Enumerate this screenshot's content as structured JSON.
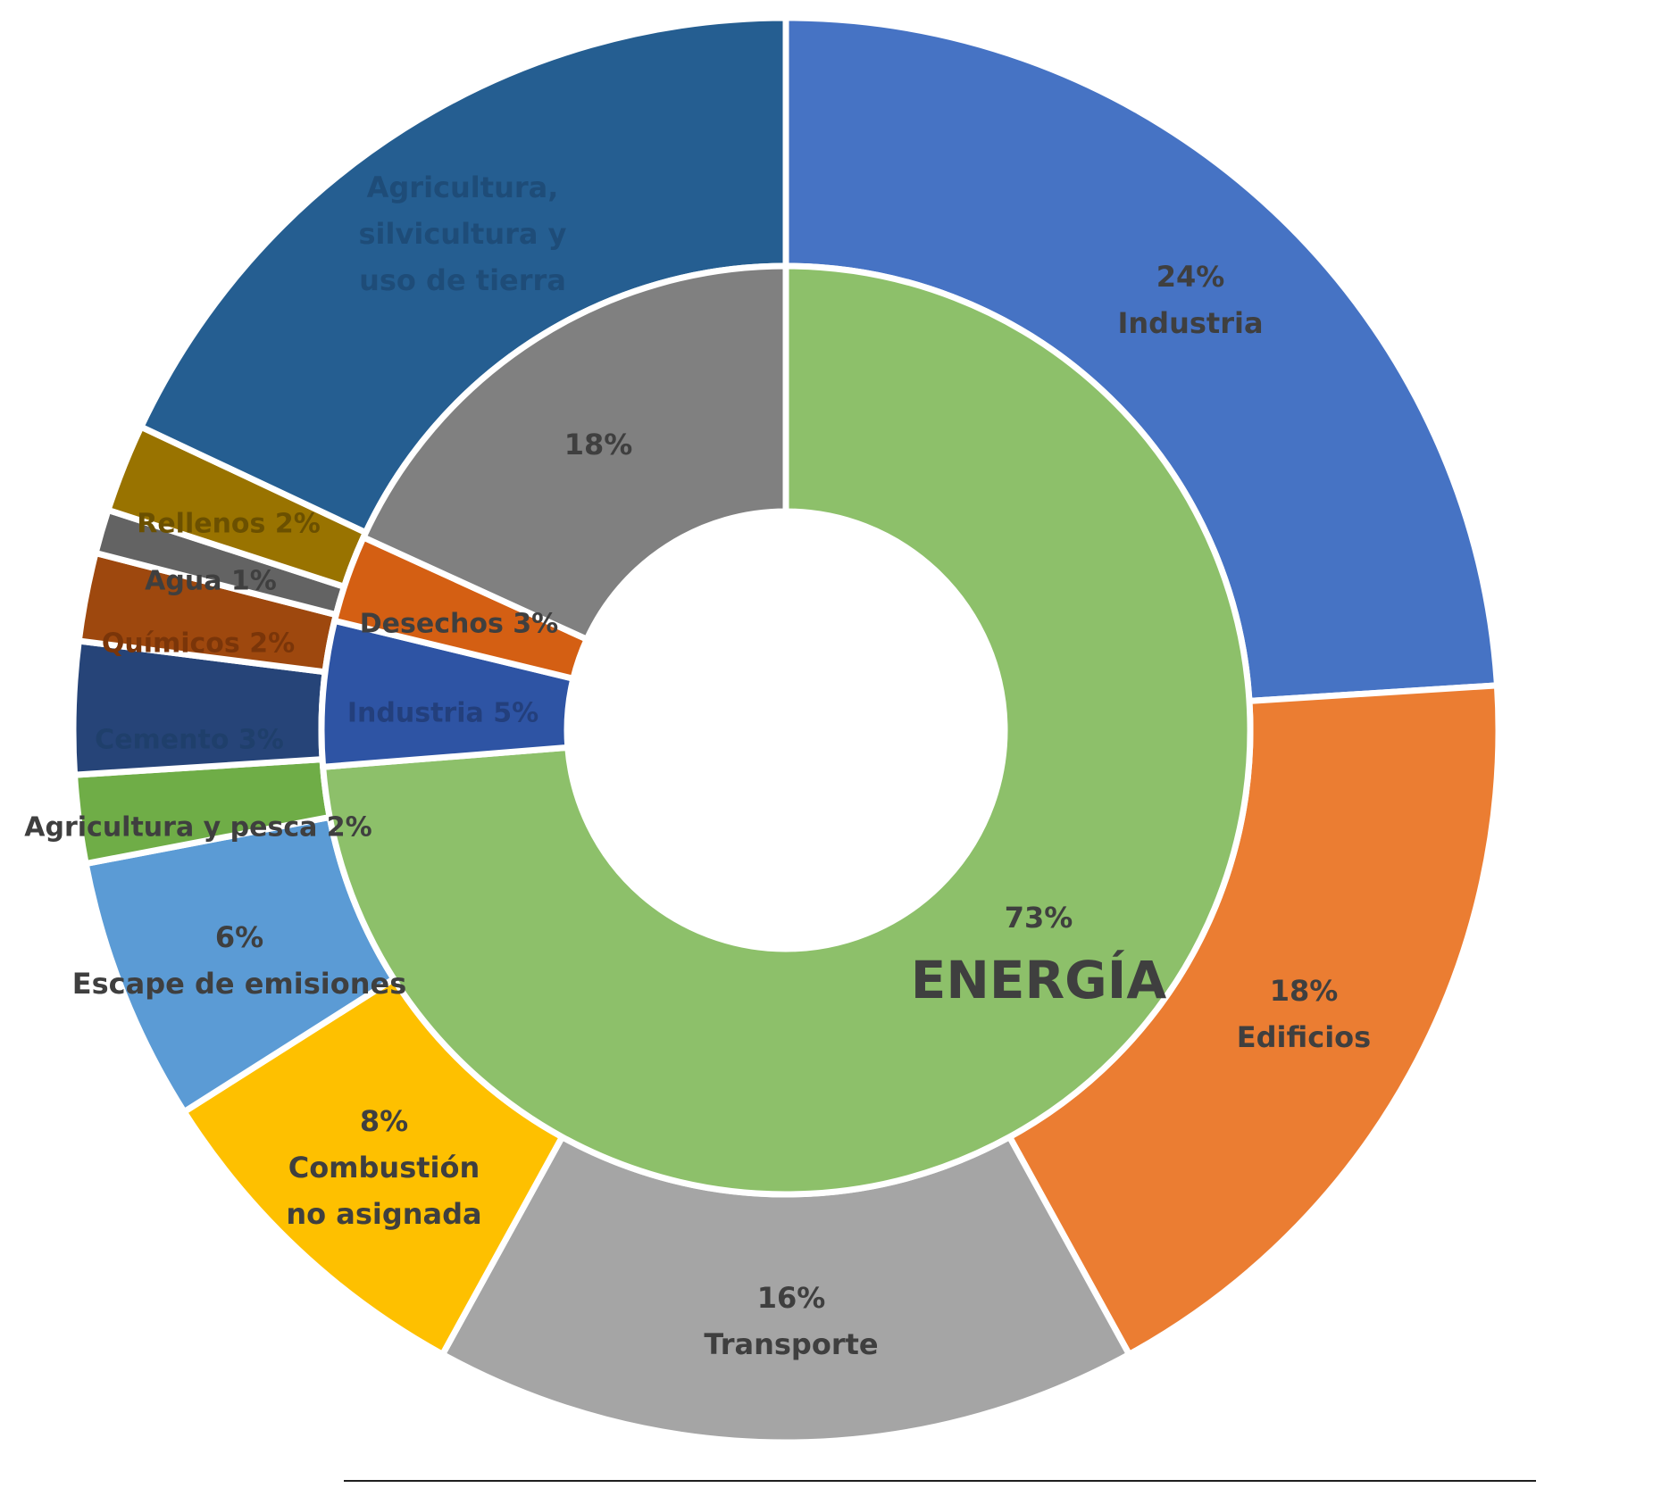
{
  "chart_data": {
    "type": "pie",
    "variant": "nested-donut",
    "title": "",
    "inner_ring": {
      "segments": [
        {
          "name": "ENERGÍA",
          "value": 73,
          "label": "73%",
          "color": "#8DC06A"
        },
        {
          "name": "Industria",
          "value": 5,
          "label": "Industria 5%",
          "color": "#2E54A4"
        },
        {
          "name": "Desechos",
          "value": 3,
          "label": "Desechos 3%",
          "color": "#D45F13"
        },
        {
          "name": "",
          "value": 18,
          "label": "18%",
          "color": "#808080"
        }
      ]
    },
    "outer_ring": {
      "segments": [
        {
          "name": "Industria",
          "value": 24,
          "label": [
            "24%",
            "Industria"
          ],
          "color": "#4673C4"
        },
        {
          "name": "Edificios",
          "value": 18,
          "label": [
            "18%",
            "Edificios"
          ],
          "color": "#EB7D32"
        },
        {
          "name": "Transporte",
          "value": 16,
          "label": [
            "16%",
            "Transporte"
          ],
          "color": "#A5A5A5"
        },
        {
          "name": "Combustión no asignada",
          "value": 8,
          "label": [
            "8%",
            "Combustión",
            "no asignada"
          ],
          "color": "#FEC000"
        },
        {
          "name": "Escape de emisiones",
          "value": 6,
          "label": [
            "6%",
            "Escape de emisiones"
          ],
          "color": "#5B9BD5"
        },
        {
          "name": "Agricultura y pesca",
          "value": 2,
          "label": [
            "Agricultura y pesca 2%"
          ],
          "color": "#6FAD47"
        },
        {
          "name": "Cemento",
          "value": 3,
          "label": [
            "Cemento 3%"
          ],
          "color": "#264478"
        },
        {
          "name": "Químicos",
          "value": 2,
          "label": [
            "Químicos 2%"
          ],
          "color": "#9E480E"
        },
        {
          "name": "Agua",
          "value": 1,
          "label": [
            "Agua 1%"
          ],
          "color": "#636363"
        },
        {
          "name": "Rellenos",
          "value": 2,
          "label": [
            "Rellenos 2%"
          ],
          "color": "#997300"
        },
        {
          "name": "Agricultura, silvicultura y uso de tierra",
          "value": 18,
          "label": [
            "Agricultura,",
            "silvicultura y",
            "uso de tierra"
          ],
          "color": "#255E91"
        }
      ]
    },
    "center_label": "ENERGÍA",
    "legend": "none",
    "start_angle": "top",
    "direction": "clockwise"
  }
}
